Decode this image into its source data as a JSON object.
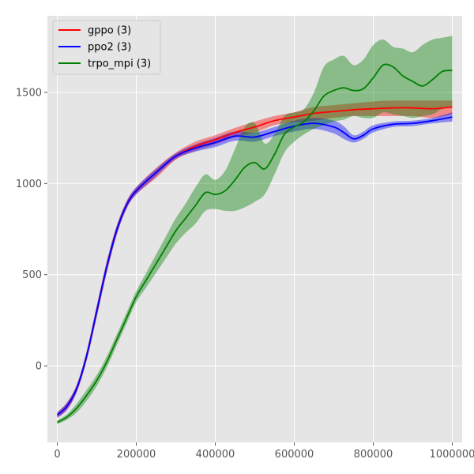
{
  "chart_data": {
    "type": "line",
    "xlabel": "",
    "ylabel": "",
    "xlim": [
      -25000,
      1025000
    ],
    "ylim": [
      -420,
      1920
    ],
    "x_ticks": [
      0,
      200000,
      400000,
      600000,
      800000,
      1000000
    ],
    "x_tick_labels": [
      "0",
      "200000",
      "400000",
      "600000",
      "800000",
      "1000000"
    ],
    "y_ticks": [
      0,
      500,
      1000,
      1500
    ],
    "y_tick_labels": [
      "0",
      "500",
      "1000",
      "1500"
    ],
    "grid": true,
    "style": "ggplot",
    "plot_background": "#e5e5e5",
    "legend_position": "upper-left",
    "series": [
      {
        "name": "gppo (3)",
        "color": "#ff0000",
        "x": [
          0,
          25000,
          50000,
          75000,
          100000,
          125000,
          150000,
          175000,
          200000,
          250000,
          300000,
          350000,
          400000,
          450000,
          500000,
          550000,
          600000,
          650000,
          700000,
          750000,
          800000,
          850000,
          900000,
          950000,
          1000000
        ],
        "mean": [
          -270,
          -220,
          -120,
          60,
          300,
          540,
          740,
          880,
          960,
          1060,
          1150,
          1205,
          1240,
          1280,
          1310,
          1345,
          1365,
          1385,
          1395,
          1405,
          1410,
          1415,
          1415,
          1410,
          1420
        ],
        "lower": [
          -285,
          -240,
          -140,
          35,
          270,
          510,
          715,
          860,
          940,
          1030,
          1130,
          1180,
          1215,
          1255,
          1280,
          1320,
          1335,
          1345,
          1360,
          1370,
          1370,
          1370,
          1370,
          1360,
          1380
        ],
        "upper": [
          -255,
          -200,
          -100,
          85,
          330,
          570,
          765,
          900,
          980,
          1085,
          1170,
          1230,
          1265,
          1305,
          1340,
          1370,
          1390,
          1420,
          1430,
          1440,
          1450,
          1455,
          1455,
          1455,
          1455
        ]
      },
      {
        "name": "ppo2 (3)",
        "color": "#0000ff",
        "x": [
          0,
          25000,
          50000,
          75000,
          100000,
          125000,
          150000,
          175000,
          200000,
          250000,
          300000,
          350000,
          400000,
          450000,
          500000,
          550000,
          600000,
          650000,
          700000,
          725000,
          750000,
          775000,
          800000,
          850000,
          900000,
          950000,
          1000000
        ],
        "mean": [
          -270,
          -220,
          -120,
          60,
          300,
          540,
          740,
          880,
          960,
          1060,
          1150,
          1195,
          1225,
          1260,
          1255,
          1285,
          1315,
          1330,
          1310,
          1280,
          1245,
          1265,
          1300,
          1325,
          1330,
          1345,
          1365
        ],
        "lower": [
          -285,
          -240,
          -140,
          35,
          270,
          510,
          715,
          860,
          940,
          1040,
          1135,
          1175,
          1200,
          1235,
          1230,
          1260,
          1285,
          1300,
          1275,
          1245,
          1225,
          1245,
          1280,
          1310,
          1315,
          1330,
          1340
        ],
        "upper": [
          -255,
          -200,
          -100,
          85,
          330,
          570,
          765,
          900,
          980,
          1080,
          1165,
          1215,
          1250,
          1285,
          1280,
          1310,
          1345,
          1360,
          1345,
          1315,
          1265,
          1285,
          1320,
          1340,
          1345,
          1360,
          1390
        ]
      },
      {
        "name": "trpo_mpi (3)",
        "color": "#008000",
        "x": [
          0,
          25000,
          50000,
          75000,
          100000,
          125000,
          150000,
          175000,
          200000,
          225000,
          250000,
          275000,
          300000,
          325000,
          350000,
          375000,
          400000,
          425000,
          450000,
          475000,
          500000,
          525000,
          550000,
          575000,
          600000,
          625000,
          650000,
          675000,
          700000,
          725000,
          750000,
          775000,
          800000,
          825000,
          850000,
          875000,
          900000,
          925000,
          950000,
          975000,
          1000000
        ],
        "mean": [
          -310,
          -280,
          -230,
          -160,
          -80,
          20,
          140,
          260,
          380,
          470,
          560,
          650,
          740,
          810,
          880,
          950,
          940,
          960,
          1020,
          1090,
          1115,
          1080,
          1160,
          1270,
          1310,
          1340,
          1400,
          1480,
          1510,
          1525,
          1510,
          1520,
          1580,
          1650,
          1640,
          1590,
          1560,
          1535,
          1570,
          1615,
          1620
        ],
        "lower": [
          -320,
          -295,
          -255,
          -190,
          -110,
          -10,
          110,
          230,
          350,
          430,
          510,
          590,
          670,
          730,
          780,
          850,
          860,
          850,
          850,
          870,
          900,
          940,
          1050,
          1170,
          1230,
          1270,
          1300,
          1320,
          1340,
          1350,
          1370,
          1360,
          1360,
          1390,
          1380,
          1370,
          1360,
          1370,
          1380,
          1410,
          1420
        ],
        "upper": [
          -300,
          -265,
          -205,
          -130,
          -50,
          50,
          170,
          290,
          410,
          510,
          610,
          710,
          810,
          890,
          980,
          1050,
          1020,
          1070,
          1190,
          1310,
          1330,
          1220,
          1270,
          1370,
          1390,
          1410,
          1500,
          1640,
          1680,
          1700,
          1650,
          1680,
          1760,
          1790,
          1750,
          1740,
          1720,
          1760,
          1790,
          1800,
          1810
        ]
      }
    ]
  }
}
